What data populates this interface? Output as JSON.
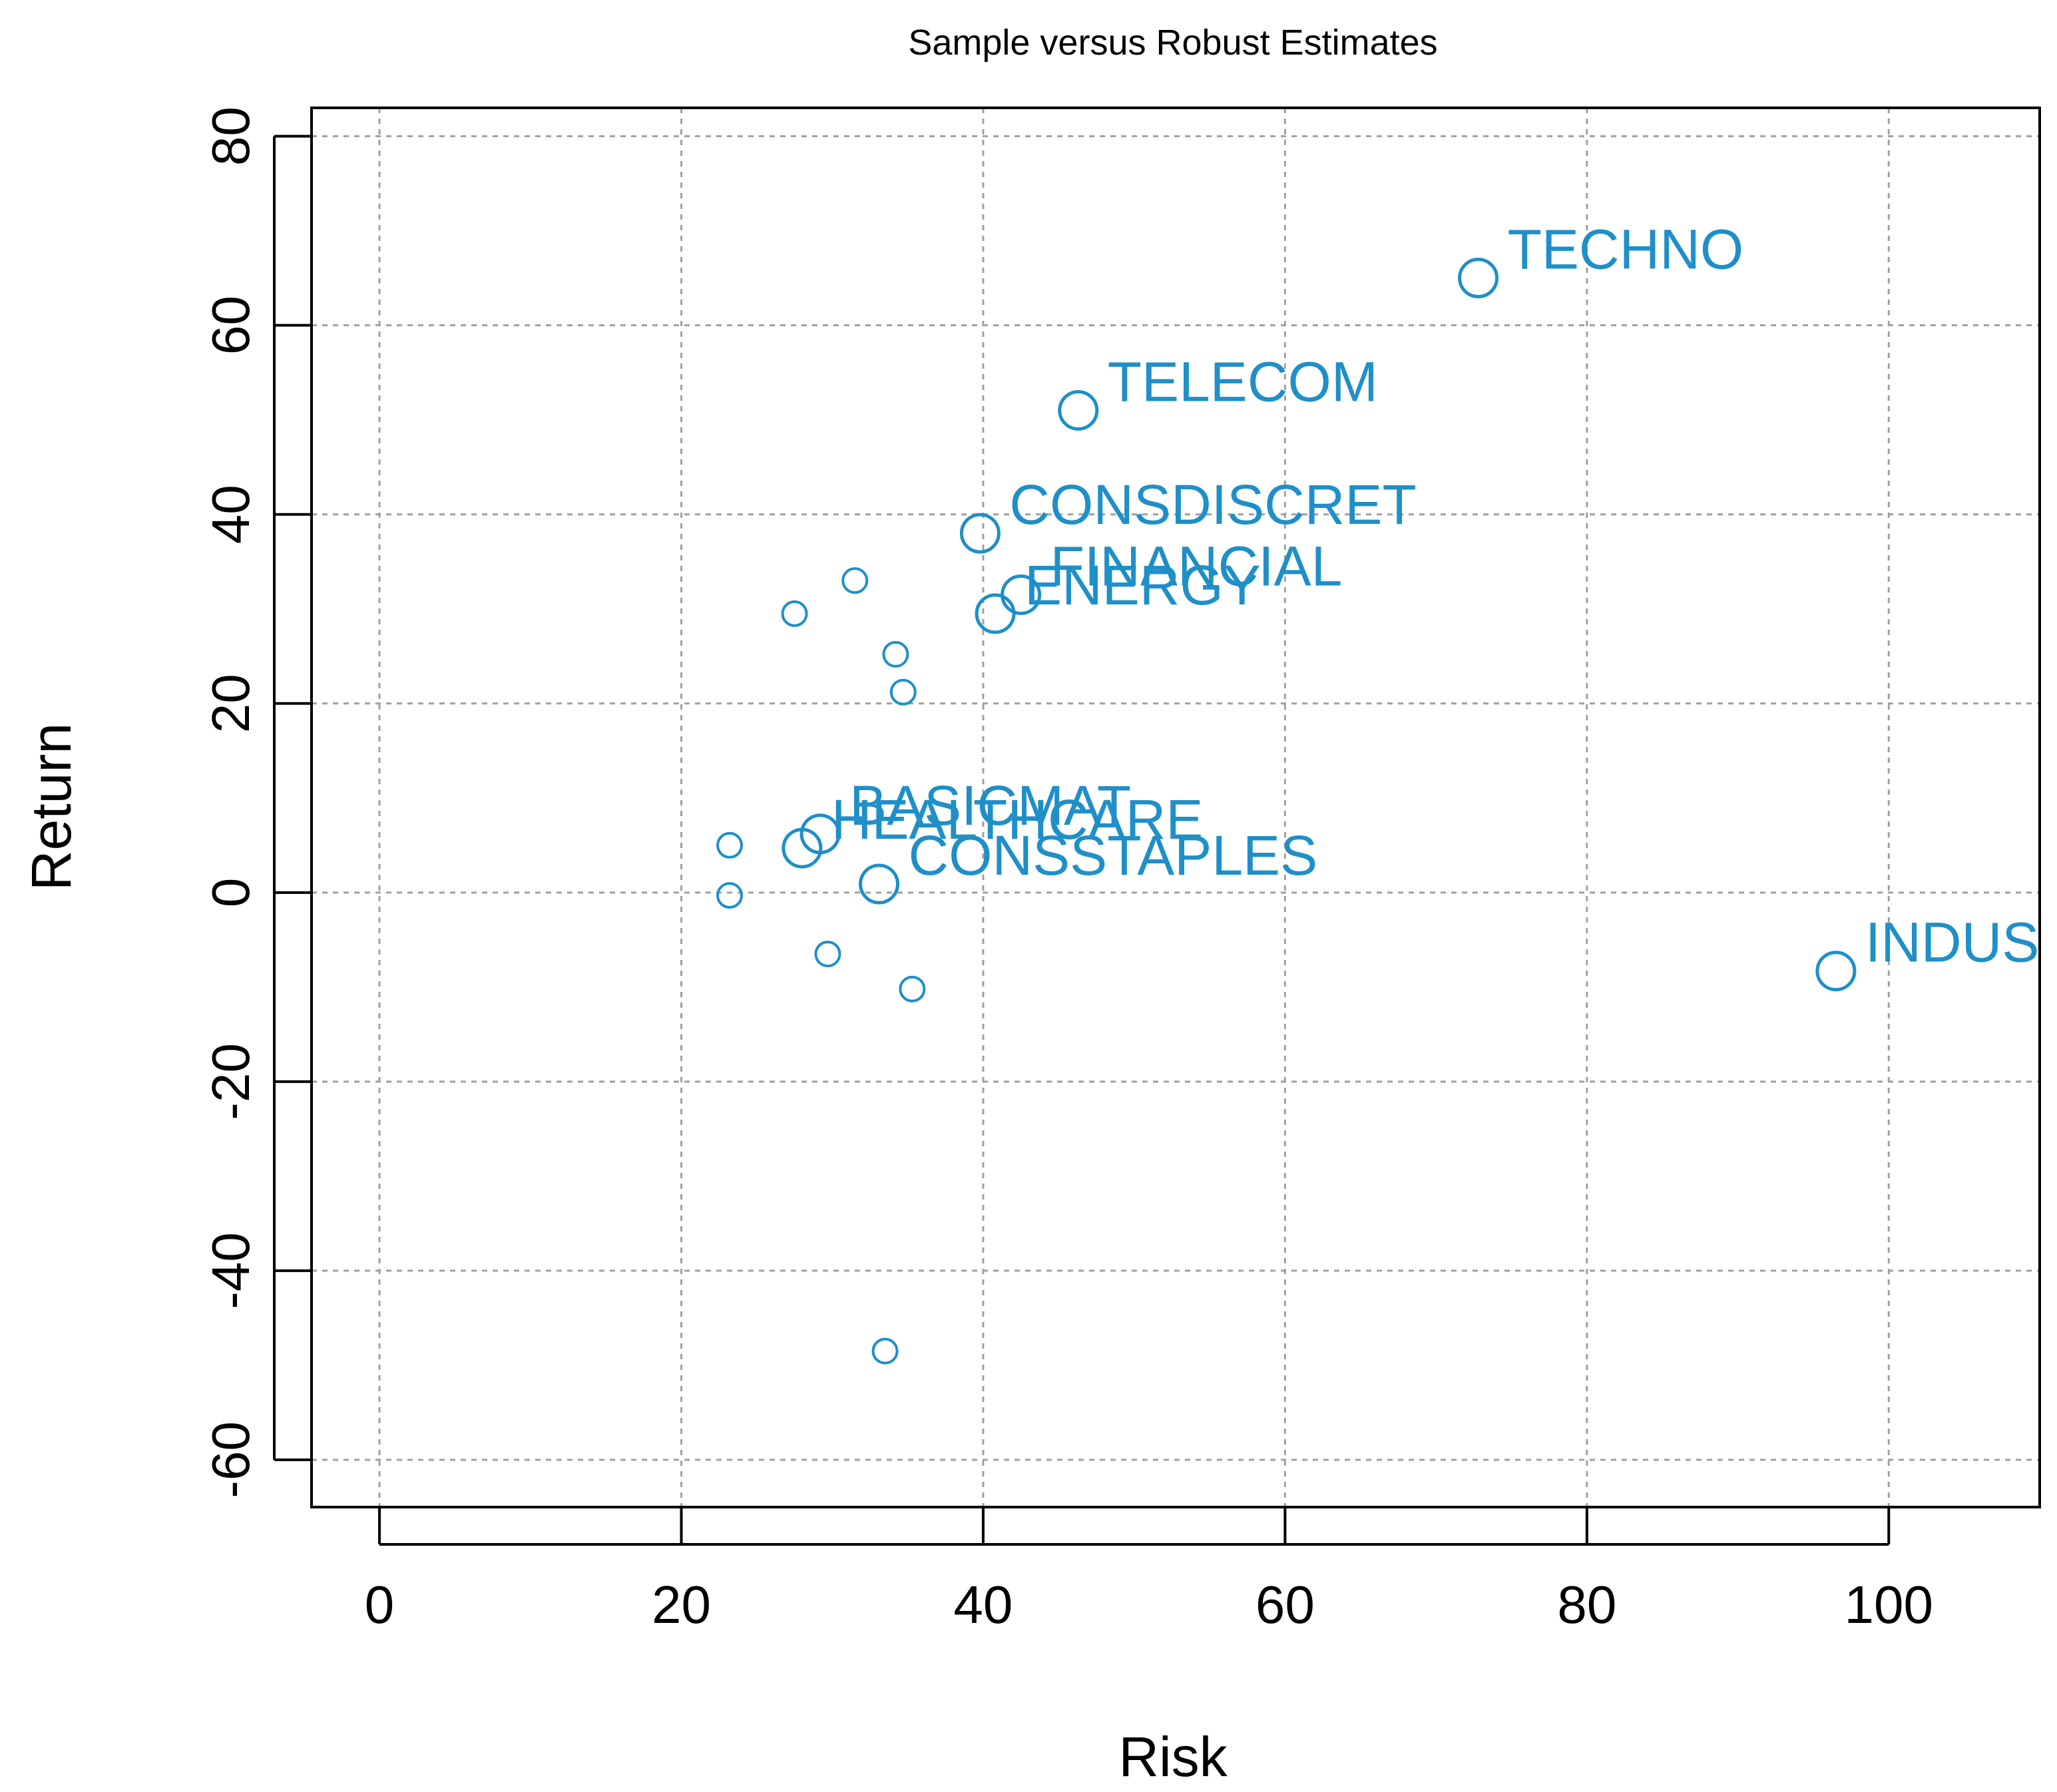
{
  "chart_data": {
    "type": "scatter",
    "title": "Sample versus Robust Estimates",
    "xlabel": "Risk",
    "ylabel": "Return",
    "xlim": [
      -4.5,
      110
    ],
    "ylim": [
      -65,
      83
    ],
    "xticks": [
      0,
      20,
      40,
      60,
      80,
      100
    ],
    "yticks": [
      -60,
      -40,
      -20,
      0,
      20,
      40,
      60,
      80
    ],
    "grid": true,
    "colors": {
      "points": "#1f8fc8",
      "labels": "#1f8fc8",
      "axes": "#000000",
      "grid": "#a0a0a0"
    },
    "series": [
      {
        "role": "sample",
        "marker": "large-circle",
        "points": [
          {
            "label": "TECHNO",
            "x": 72.8,
            "y": 65.0
          },
          {
            "label": "TELECOM",
            "x": 46.3,
            "y": 51.0
          },
          {
            "label": "CONSDISCRET",
            "x": 39.8,
            "y": 38.0
          },
          {
            "label": "FINANCIAL",
            "x": 42.5,
            "y": 31.5
          },
          {
            "label": "ENERGY",
            "x": 40.8,
            "y": 29.5
          },
          {
            "label": "BASICMAT",
            "x": 29.2,
            "y": 6.2
          },
          {
            "label": "HEALTHCARE",
            "x": 28.0,
            "y": 4.7
          },
          {
            "label": "CONSSTAPLES",
            "x": 33.1,
            "y": 0.9
          },
          {
            "label": "INDUS",
            "x": 96.5,
            "y": -8.3
          }
        ]
      },
      {
        "role": "robust",
        "marker": "small-circle",
        "points": [
          {
            "x": 31.5,
            "y": 33.0
          },
          {
            "x": 27.5,
            "y": 29.5
          },
          {
            "x": 34.2,
            "y": 25.2
          },
          {
            "x": 34.7,
            "y": 21.2
          },
          {
            "x": 23.2,
            "y": 5.0
          },
          {
            "x": 23.2,
            "y": -0.3
          },
          {
            "x": 29.7,
            "y": -6.5
          },
          {
            "x": 35.3,
            "y": -10.2
          },
          {
            "x": 33.5,
            "y": -48.5
          }
        ]
      }
    ]
  }
}
